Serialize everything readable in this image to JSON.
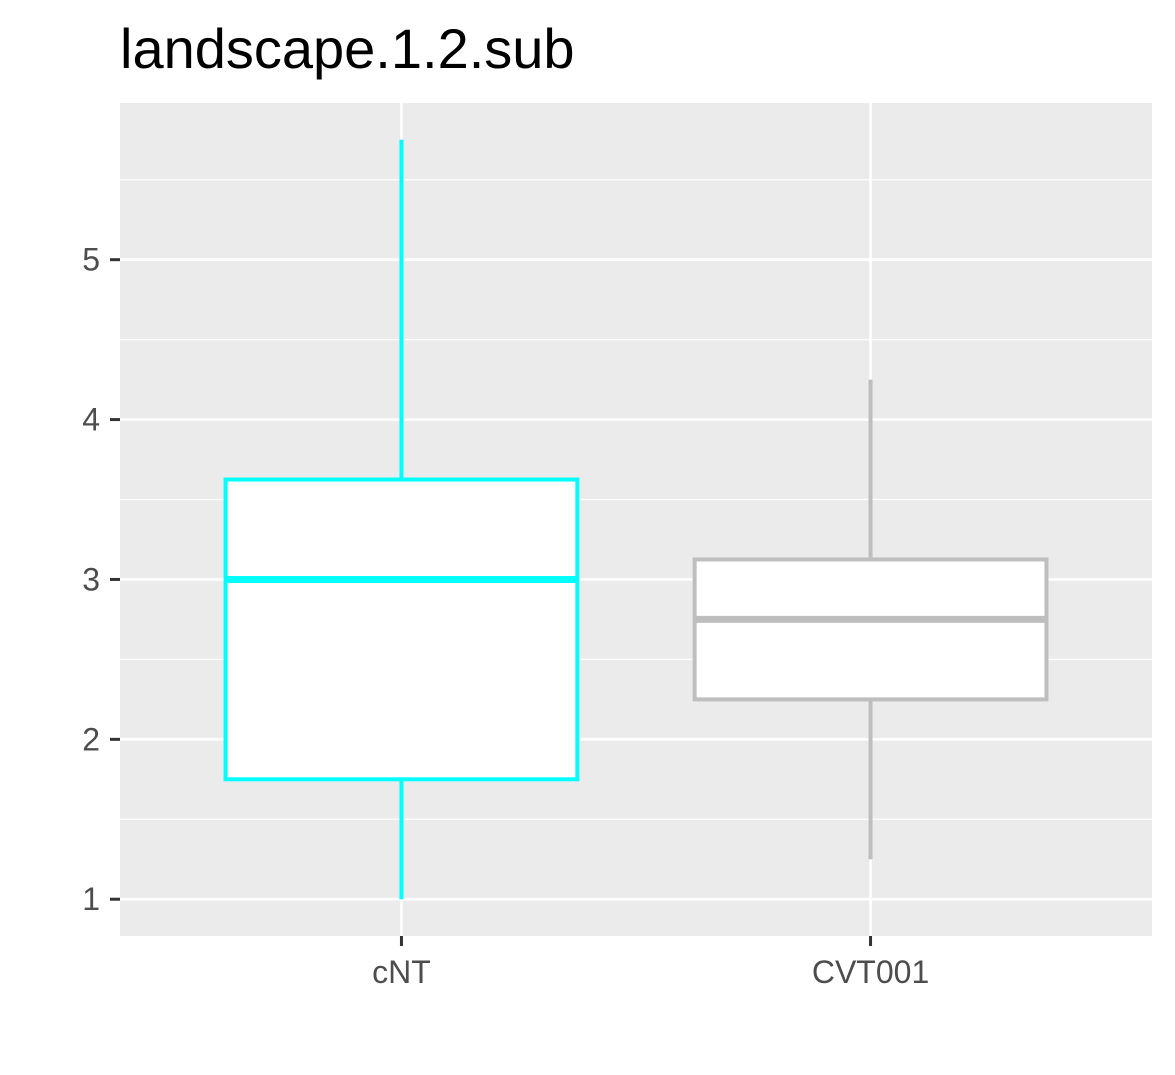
{
  "chart_data": {
    "type": "boxplot",
    "title": "landscape.1.2.sub",
    "xlabel": "",
    "ylabel": "",
    "categories": [
      "cNT",
      "CVT001"
    ],
    "ylim": [
      0.77,
      5.98
    ],
    "yticks": [
      1,
      2,
      3,
      4,
      5
    ],
    "grid": true,
    "legend": "none",
    "boxes": [
      {
        "category": "cNT",
        "whisker_low": 1.0,
        "q1": 1.75,
        "median": 3.0,
        "q3": 3.625,
        "whisker_high": 5.75,
        "color": "#00ffff"
      },
      {
        "category": "CVT001",
        "whisker_low": 1.25,
        "q1": 2.25,
        "median": 2.75,
        "q3": 3.125,
        "whisker_high": 4.25,
        "color": "#bebebe"
      }
    ]
  },
  "colors": {
    "panel_background": "#ebebeb",
    "grid_line": "#ffffff",
    "tick_text": "#4d4d4d",
    "tick_mark": "#333333",
    "box_fill": "#ffffff"
  }
}
